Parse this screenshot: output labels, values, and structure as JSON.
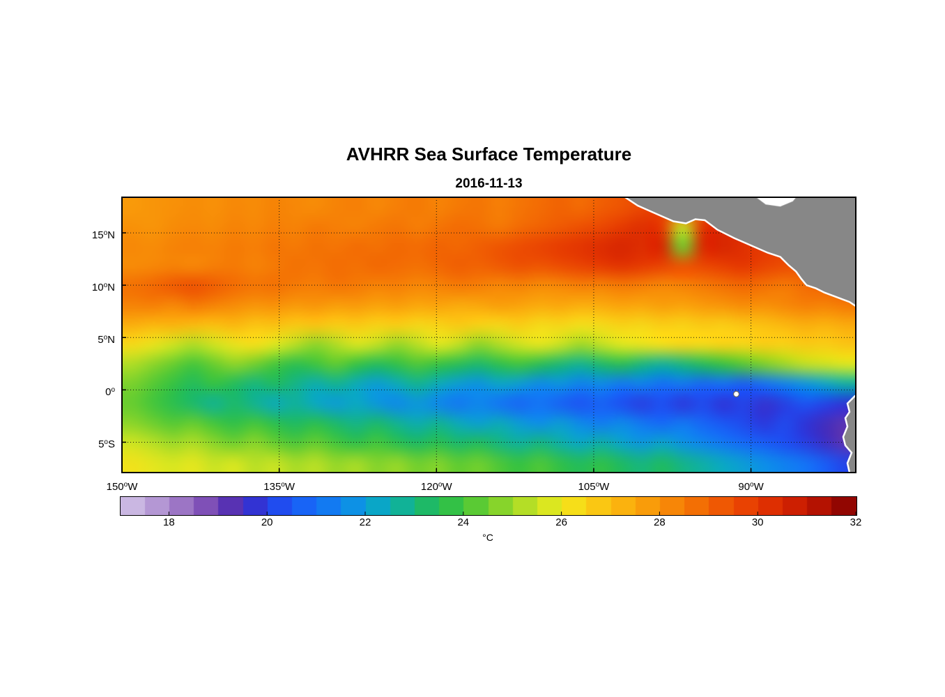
{
  "title": "AVHRR Sea Surface Temperature",
  "subtitle": "2016-11-13",
  "chart_data": {
    "type": "heatmap",
    "title": "AVHRR Sea Surface Temperature",
    "subtitle": "2016-11-13",
    "grid_on": true,
    "deg_symbol": "o",
    "lon_range": [
      -150,
      -80
    ],
    "lat_range": [
      -7.9,
      18.4
    ],
    "x_ticks": [
      {
        "lon": -150,
        "num": "150",
        "dir": "W"
      },
      {
        "lon": -135,
        "num": "135",
        "dir": "W"
      },
      {
        "lon": -120,
        "num": "120",
        "dir": "W"
      },
      {
        "lon": -105,
        "num": "105",
        "dir": "W"
      },
      {
        "lon": -90,
        "num": "90",
        "dir": "W"
      }
    ],
    "y_ticks": [
      {
        "lat": 15,
        "num": "15",
        "dir": "N"
      },
      {
        "lat": 10,
        "num": "10",
        "dir": "N"
      },
      {
        "lat": 5,
        "num": "5",
        "dir": "N"
      },
      {
        "lat": 0,
        "num": "0",
        "dir": ""
      },
      {
        "lat": -5,
        "num": "5",
        "dir": "S"
      }
    ],
    "gridline_lats": [
      15,
      10,
      5,
      0,
      -5
    ],
    "gridline_lons": [
      -135,
      -120,
      -105,
      -90
    ],
    "colorbar": {
      "min": 17,
      "max": 32,
      "band_step": 0.5,
      "ticks": [
        18,
        20,
        22,
        24,
        26,
        28,
        30,
        32
      ],
      "label": "°C",
      "orientation": "horizontal"
    },
    "colormap_stops": [
      [
        17.0,
        "#D4C7E8"
      ],
      [
        17.5,
        "#C0A7DB"
      ],
      [
        18.0,
        "#A887CC"
      ],
      [
        18.5,
        "#8F62BE"
      ],
      [
        19.0,
        "#6F3EB0"
      ],
      [
        19.4,
        "#4A2BB4"
      ],
      [
        19.8,
        "#2E34D8"
      ],
      [
        20.3,
        "#1E4FF2"
      ],
      [
        21.0,
        "#156FF8"
      ],
      [
        21.7,
        "#0D8FE8"
      ],
      [
        22.3,
        "#0AA8C4"
      ],
      [
        22.8,
        "#12B392"
      ],
      [
        23.3,
        "#1FBA62"
      ],
      [
        23.8,
        "#35C243"
      ],
      [
        24.3,
        "#5ECB32"
      ],
      [
        24.8,
        "#8CD52A"
      ],
      [
        25.3,
        "#B8DF25"
      ],
      [
        25.8,
        "#DFE81F"
      ],
      [
        26.2,
        "#F5E01A"
      ],
      [
        26.6,
        "#FACE15"
      ],
      [
        27.0,
        "#FBBC10"
      ],
      [
        27.5,
        "#FAA70C"
      ],
      [
        28.0,
        "#F89108"
      ],
      [
        28.5,
        "#F57A05"
      ],
      [
        29.0,
        "#F16303"
      ],
      [
        29.5,
        "#EC4C02"
      ],
      [
        30.0,
        "#E53701"
      ],
      [
        30.5,
        "#D72601"
      ],
      [
        31.0,
        "#C21701"
      ],
      [
        31.5,
        "#A50C01"
      ],
      [
        32.0,
        "#7F0000"
      ]
    ],
    "sst_grid": {
      "lons_start": -150,
      "lons_step": 2,
      "n_lons": 36,
      "lats": [
        18,
        16,
        14,
        12,
        10,
        8,
        6,
        4,
        2,
        0,
        -2,
        -4,
        -6,
        -8
      ],
      "values": [
        [
          27.8,
          27.9,
          28.0,
          28.1,
          28.0,
          28.2,
          28.1,
          28.3,
          28.2,
          28.1,
          28.3,
          28.4,
          28.2,
          28.4,
          28.5,
          28.3,
          28.5,
          28.6,
          28.4,
          28.6,
          28.8,
          29.0,
          28.8,
          29.1,
          29.3,
          29.6,
          29.8,
          29.5,
          29.2,
          29.5,
          29.7,
          29.9,
          29.6,
          29.4,
          29.7,
          29.9
        ],
        [
          28.0,
          27.9,
          28.1,
          28.2,
          28.1,
          28.3,
          28.2,
          28.4,
          28.3,
          28.5,
          28.4,
          28.3,
          28.5,
          28.6,
          28.4,
          28.6,
          28.8,
          28.7,
          28.5,
          28.8,
          29.0,
          29.2,
          29.4,
          29.6,
          29.9,
          30.2,
          29.9,
          25.5,
          30.1,
          30.3,
          30.0,
          29.8,
          29.6,
          29.4,
          29.7,
          29.9
        ],
        [
          28.2,
          28.1,
          28.3,
          28.4,
          28.3,
          28.5,
          28.4,
          28.6,
          28.5,
          28.7,
          28.6,
          28.8,
          28.7,
          28.9,
          28.8,
          29.0,
          28.9,
          29.1,
          29.3,
          29.5,
          29.7,
          29.9,
          30.1,
          30.3,
          30.5,
          30.3,
          30.5,
          24.5,
          30.4,
          30.5,
          30.2,
          29.9,
          29.7,
          29.5,
          29.8,
          30.0
        ],
        [
          28.1,
          28.2,
          28.3,
          28.2,
          28.4,
          28.5,
          28.3,
          28.5,
          28.7,
          28.6,
          28.8,
          28.7,
          28.9,
          28.8,
          28.7,
          28.9,
          29.1,
          29.0,
          29.2,
          29.4,
          29.3,
          29.5,
          29.7,
          29.9,
          30.1,
          29.9,
          29.7,
          29.4,
          29.6,
          29.8,
          30.0,
          29.7,
          29.5,
          29.3,
          29.6,
          29.8
        ],
        [
          28.7,
          28.9,
          29.2,
          29.4,
          29.1,
          28.8,
          28.6,
          28.7,
          28.5,
          28.4,
          28.6,
          28.5,
          28.3,
          28.4,
          28.2,
          28.3,
          28.5,
          28.4,
          28.2,
          28.3,
          28.1,
          28.2,
          28.4,
          28.3,
          28.5,
          28.4,
          28.2,
          28.3,
          28.5,
          28.7,
          28.9,
          28.7,
          28.5,
          28.8,
          29.0,
          29.2
        ],
        [
          28.3,
          28.4,
          28.2,
          28.5,
          28.3,
          28.1,
          27.9,
          28.0,
          27.8,
          27.9,
          27.7,
          27.8,
          27.6,
          27.7,
          27.5,
          27.6,
          27.4,
          27.5,
          27.7,
          27.6,
          27.4,
          27.5,
          27.3,
          27.4,
          27.6,
          27.5,
          27.7,
          27.6,
          27.8,
          27.9,
          28.1,
          28.0,
          28.2,
          28.4,
          28.3,
          28.5
        ],
        [
          27.3,
          27.1,
          27.2,
          27.0,
          26.9,
          27.1,
          26.8,
          26.9,
          26.7,
          26.8,
          26.6,
          26.7,
          26.5,
          26.6,
          26.4,
          26.5,
          26.7,
          26.5,
          26.4,
          26.6,
          26.3,
          26.4,
          26.2,
          26.3,
          26.5,
          26.4,
          26.6,
          26.5,
          26.7,
          26.6,
          26.8,
          26.9,
          27.1,
          27.3,
          27.2,
          27.4
        ],
        [
          26.3,
          26.0,
          25.6,
          25.2,
          25.6,
          26.0,
          26.2,
          25.8,
          25.3,
          24.8,
          25.2,
          25.7,
          25.4,
          24.9,
          25.3,
          25.8,
          25.4,
          24.8,
          25.2,
          25.6,
          25.9,
          25.5,
          25.0,
          25.4,
          25.8,
          26.0,
          26.2,
          26.4,
          26.3,
          26.5,
          26.4,
          26.6,
          26.5,
          26.7,
          26.6,
          26.8
        ],
        [
          25.2,
          24.8,
          24.4,
          24.0,
          24.4,
          24.8,
          24.5,
          24.0,
          23.6,
          23.9,
          24.3,
          23.8,
          23.4,
          23.7,
          24.1,
          23.8,
          23.5,
          23.2,
          23.6,
          23.9,
          23.5,
          23.1,
          22.8,
          23.2,
          23.5,
          23.0,
          22.7,
          23.0,
          23.4,
          23.8,
          24.2,
          24.6,
          25.0,
          25.4,
          25.6,
          25.8
        ],
        [
          24.6,
          24.2,
          23.8,
          23.4,
          23.8,
          23.4,
          23.0,
          23.3,
          22.9,
          22.5,
          22.8,
          22.4,
          22.0,
          22.4,
          22.8,
          22.4,
          22.0,
          21.8,
          22.2,
          22.0,
          21.6,
          21.8,
          21.4,
          21.6,
          21.2,
          21.4,
          21.0,
          21.2,
          20.8,
          21.0,
          20.6,
          21.0,
          21.4,
          21.8,
          22.2,
          22.6
        ],
        [
          24.4,
          24.0,
          23.6,
          23.2,
          22.8,
          23.2,
          22.8,
          22.4,
          22.7,
          22.3,
          22.0,
          22.3,
          21.9,
          21.6,
          21.9,
          21.5,
          21.2,
          21.5,
          21.1,
          20.8,
          21.1,
          20.7,
          20.4,
          20.7,
          20.3,
          20.0,
          20.3,
          19.9,
          20.2,
          19.8,
          20.1,
          19.7,
          20.0,
          20.4,
          20.1,
          19.8
        ],
        [
          24.8,
          24.5,
          24.2,
          24.4,
          24.0,
          23.7,
          24.0,
          23.6,
          23.3,
          23.6,
          23.2,
          22.9,
          23.2,
          22.8,
          22.5,
          22.8,
          22.4,
          22.1,
          22.4,
          22.0,
          21.7,
          22.0,
          21.6,
          21.3,
          21.6,
          21.2,
          20.9,
          21.2,
          20.8,
          20.5,
          20.2,
          19.9,
          20.2,
          19.8,
          19.5,
          19.2
        ],
        [
          25.6,
          25.3,
          25.0,
          25.2,
          24.8,
          24.5,
          24.8,
          24.4,
          24.1,
          24.4,
          24.0,
          23.7,
          24.0,
          23.6,
          23.3,
          23.6,
          23.2,
          23.4,
          23.0,
          22.7,
          23.0,
          22.6,
          22.3,
          22.6,
          22.2,
          21.9,
          22.2,
          21.8,
          21.5,
          21.2,
          20.9,
          20.6,
          20.3,
          20.0,
          19.6,
          19.2
        ],
        [
          26.1,
          25.9,
          25.7,
          25.9,
          25.5,
          25.7,
          25.3,
          25.5,
          25.1,
          25.3,
          24.9,
          25.1,
          24.7,
          24.9,
          24.5,
          24.7,
          24.3,
          24.5,
          24.1,
          23.8,
          24.1,
          23.7,
          23.4,
          23.7,
          23.3,
          23.0,
          23.3,
          22.9,
          22.6,
          22.3,
          22.0,
          21.7,
          21.4,
          21.1,
          20.6,
          20.1
        ]
      ]
    },
    "land": {
      "fill": "#878787",
      "coast_stroke": "#ffffff",
      "polygons": [
        {
          "name": "central-america",
          "points": [
            [
              -102.3,
              18.6
            ],
            [
              -100.8,
              17.6
            ],
            [
              -99.0,
              16.8
            ],
            [
              -97.4,
              16.1
            ],
            [
              -96.2,
              15.9
            ],
            [
              -95.3,
              16.3
            ],
            [
              -94.4,
              16.2
            ],
            [
              -93.2,
              15.3
            ],
            [
              -91.6,
              14.5
            ],
            [
              -90.0,
              13.8
            ],
            [
              -88.4,
              13.1
            ],
            [
              -87.2,
              12.7
            ],
            [
              -86.4,
              11.9
            ],
            [
              -85.7,
              11.3
            ],
            [
              -85.2,
              10.6
            ],
            [
              -84.7,
              10.0
            ],
            [
              -83.8,
              9.7
            ],
            [
              -83.0,
              9.3
            ],
            [
              -82.2,
              9.0
            ],
            [
              -81.4,
              8.7
            ],
            [
              -80.6,
              8.4
            ],
            [
              -80.0,
              8.0
            ],
            [
              -79.3,
              8.3
            ],
            [
              -79.3,
              19.0
            ],
            [
              -102.3,
              19.0
            ]
          ]
        },
        {
          "name": "south-america",
          "points": [
            [
              -79.3,
              -0.1
            ],
            [
              -80.1,
              -0.6
            ],
            [
              -80.8,
              -1.3
            ],
            [
              -80.6,
              -2.1
            ],
            [
              -81.0,
              -2.7
            ],
            [
              -80.8,
              -3.5
            ],
            [
              -81.2,
              -4.5
            ],
            [
              -81.0,
              -5.3
            ],
            [
              -80.4,
              -6.0
            ],
            [
              -80.8,
              -7.0
            ],
            [
              -80.6,
              -7.9
            ],
            [
              -80.8,
              -8.5
            ],
            [
              -79.3,
              -8.5
            ]
          ]
        }
      ],
      "water_patches": [
        {
          "name": "gulf-of-honduras",
          "points": [
            [
              -89.8,
              18.6
            ],
            [
              -88.6,
              17.7
            ],
            [
              -87.2,
              17.5
            ],
            [
              -86.0,
              18.0
            ],
            [
              -85.5,
              18.6
            ]
          ]
        }
      ],
      "islands": [
        {
          "name": "galapagos",
          "lon": -91.4,
          "lat": -0.4,
          "r": 4
        }
      ]
    }
  }
}
